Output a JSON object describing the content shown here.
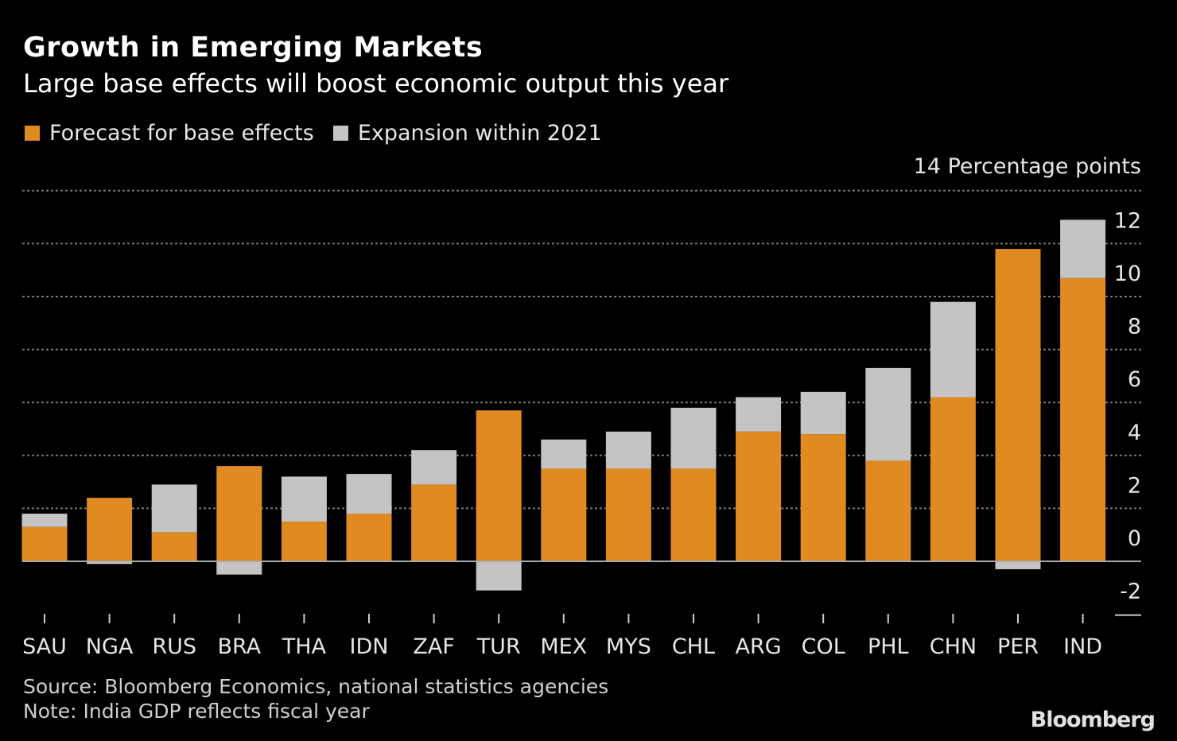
{
  "chart_data": {
    "type": "bar",
    "stacked": true,
    "title": "Growth in Emerging Markets",
    "subtitle": "Large base effects will boost economic output this year",
    "ylabel": "Percentage points",
    "ylim": [
      -2,
      14
    ],
    "yticks": [
      -2,
      0,
      2,
      4,
      6,
      8,
      10,
      12,
      14
    ],
    "grid": true,
    "legend_position": "top-left",
    "categories": [
      "SAU",
      "NGA",
      "RUS",
      "BRA",
      "THA",
      "IDN",
      "ZAF",
      "TUR",
      "MEX",
      "MYS",
      "CHL",
      "ARG",
      "COL",
      "PHL",
      "CHN",
      "PER",
      "IND"
    ],
    "series": [
      {
        "name": "Forecast for base effects",
        "color": "#e08a22",
        "values": [
          1.3,
          2.4,
          1.1,
          3.6,
          1.5,
          1.8,
          2.9,
          5.7,
          3.5,
          3.5,
          3.5,
          4.9,
          4.8,
          3.8,
          6.2,
          11.8,
          10.7
        ]
      },
      {
        "name": "Expansion within 2021",
        "color": "#c4c4c4",
        "values": [
          0.5,
          -0.1,
          1.8,
          -0.5,
          1.7,
          1.5,
          1.3,
          -1.1,
          1.1,
          1.4,
          2.3,
          1.3,
          1.6,
          3.5,
          3.6,
          -0.3,
          2.2
        ]
      }
    ]
  },
  "source": "Source: Bloomberg Economics, national statistics agencies",
  "note": "Note: India GDP reflects fiscal year",
  "logo": "Bloomberg"
}
